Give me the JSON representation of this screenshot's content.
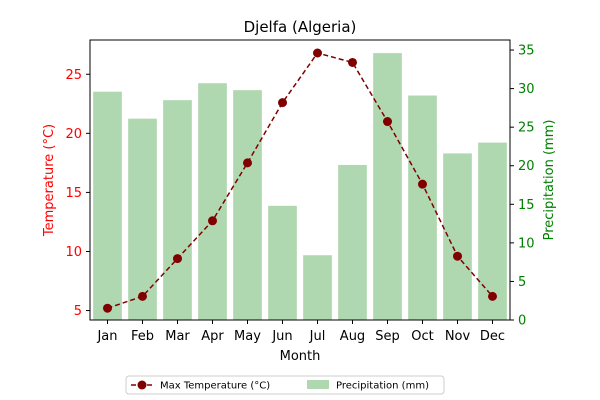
{
  "chart_data": {
    "type": "bar+line",
    "title": "Djelfa (Algeria)",
    "xlabel": "Month",
    "categories": [
      "Jan",
      "Feb",
      "Mar",
      "Apr",
      "May",
      "Jun",
      "Jul",
      "Aug",
      "Sep",
      "Oct",
      "Nov",
      "Dec"
    ],
    "left_axis": {
      "label": "Temperature (°C)",
      "color": "#ff0000",
      "ticks": [
        "5",
        "10",
        "15",
        "20",
        "25"
      ],
      "tick_values": [
        5,
        10,
        15,
        20,
        25
      ],
      "ylim": [
        4.2,
        27.9
      ]
    },
    "right_axis": {
      "label": "Precipitation (mm)",
      "color": "#008000",
      "ticks": [
        "0",
        "5",
        "10",
        "15",
        "20",
        "25",
        "30",
        "35"
      ],
      "tick_values": [
        0,
        5,
        10,
        15,
        20,
        25,
        30,
        35
      ],
      "ylim": [
        0,
        36.3
      ]
    },
    "series": [
      {
        "name": "Max Temperature (°C)",
        "type": "line",
        "axis": "left",
        "color": "#800000",
        "line_style": "dashed",
        "marker": "circle",
        "values": [
          5.2,
          6.2,
          9.4,
          12.6,
          17.5,
          22.6,
          26.8,
          26.0,
          21.0,
          15.7,
          9.6,
          6.2
        ]
      },
      {
        "name": "Precipitation (mm)",
        "type": "bar",
        "axis": "right",
        "color": "#b0d8b0",
        "values": [
          29.6,
          26.1,
          28.5,
          30.7,
          29.8,
          14.8,
          8.4,
          20.1,
          34.6,
          29.1,
          21.6,
          23.0
        ]
      }
    ],
    "legend": {
      "placement": "bottom-center",
      "columns": 2
    },
    "grid": false
  }
}
